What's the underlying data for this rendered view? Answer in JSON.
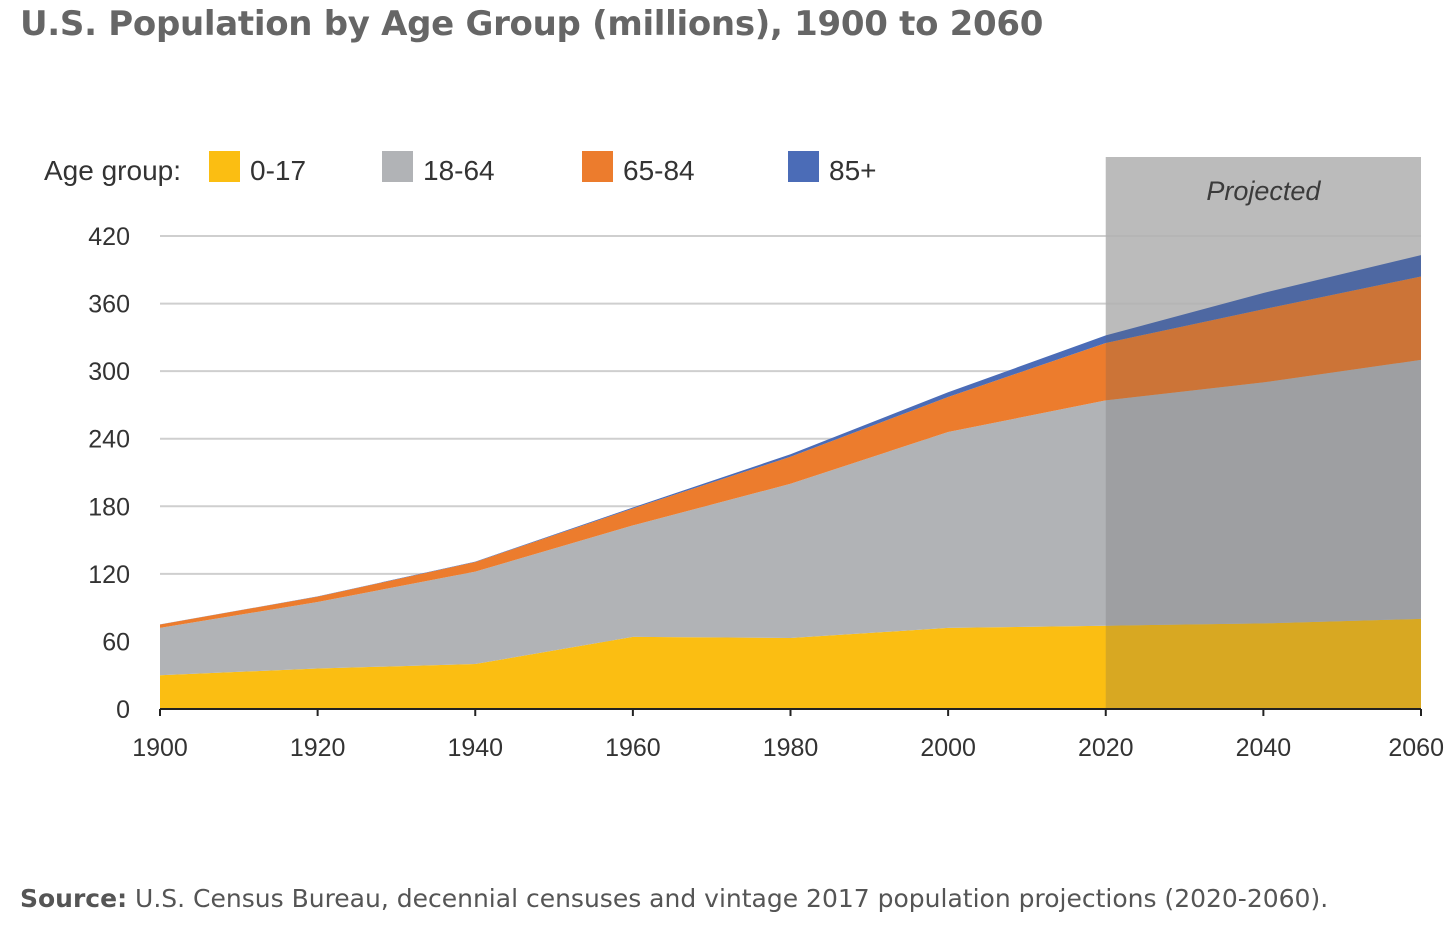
{
  "title": "U.S. Population by Age Group (millions), 1900 to 2060",
  "source": {
    "label": "Source:",
    "text": " U.S. Census Bureau, decennial censuses and vintage 2017 population projections (2020-2060)."
  },
  "chart_data": {
    "type": "area",
    "stacked": true,
    "x": [
      1900,
      1920,
      1940,
      1960,
      1980,
      2000,
      2020,
      2040,
      2060
    ],
    "xlim": [
      1900,
      2060
    ],
    "ylim": [
      0,
      420
    ],
    "yticks": [
      0,
      60,
      120,
      180,
      240,
      300,
      360,
      420
    ],
    "xticks": [
      1900,
      1920,
      1940,
      1960,
      1980,
      2000,
      2020,
      2040,
      2060
    ],
    "grid": true,
    "legend_title": "Age group:",
    "legend_position": "top",
    "projected_label": "Projected",
    "projected_range": [
      2020,
      2060
    ],
    "series": [
      {
        "name": "0-17",
        "color": "#FBBE12",
        "values": [
          30,
          36,
          40,
          64,
          63,
          72,
          74,
          76,
          80
        ]
      },
      {
        "name": "18-64",
        "color": "#B1B3B6",
        "values": [
          42,
          59,
          82,
          99,
          137,
          174,
          200,
          214,
          230
        ]
      },
      {
        "name": "65-84",
        "color": "#EC7C2D",
        "values": [
          3,
          4.8,
          8.5,
          15,
          24,
          31,
          51,
          65,
          74
        ]
      },
      {
        "name": "85+",
        "color": "#4B6CB7",
        "values": [
          0.1,
          0.2,
          0.4,
          0.9,
          2.2,
          4.2,
          6.7,
          14.4,
          19
        ]
      }
    ]
  }
}
